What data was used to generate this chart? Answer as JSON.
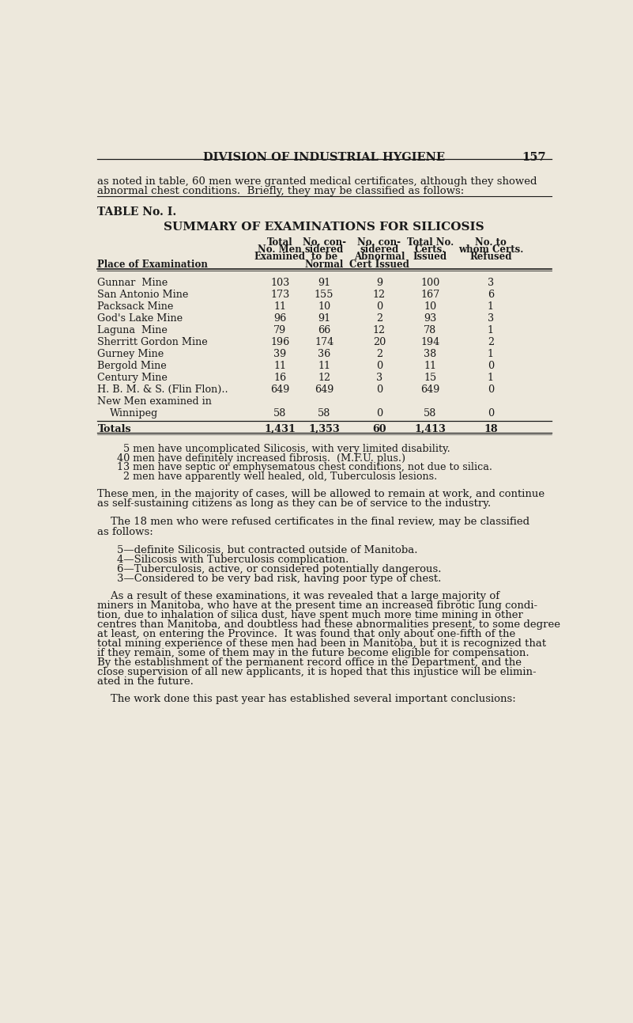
{
  "bg_color": "#ede8dc",
  "text_color": "#1a1a1a",
  "page_header": "DIVISION OF INDUSTRIAL HYGIENE",
  "page_number": "157",
  "intro_line1": "as noted in table, 60 men were granted medical certificates, although they showed",
  "intro_line2": "abnormal chest conditions.  Briefly, they may be classified as follows:",
  "table_label": "TABLE No. I.",
  "table_title": "SUMMARY OF EXAMINATIONS FOR SILICOSIS",
  "col_headers": [
    "Place of Examination",
    "Total\nNo. Men\nExamined",
    "No. con-\nsidered\nto be\nNormal",
    "No. con-\nsidered\nAbnormal\nCert Issued",
    "Total No.\nCerts.\nIssued",
    "No. to\nwhom Certs.\nRefused"
  ],
  "rows": [
    [
      "Gunnar  Mine",
      "103",
      "91",
      "9",
      "100",
      "3"
    ],
    [
      "San Antonio Mine",
      "173",
      "155",
      "12",
      "167",
      "6"
    ],
    [
      "Packsack Mine",
      "11",
      "10",
      "0",
      "10",
      "1"
    ],
    [
      "God's Lake Mine",
      "96",
      "91",
      "2",
      "93",
      "3"
    ],
    [
      "Laguna  Mine",
      "79",
      "66",
      "12",
      "78",
      "1"
    ],
    [
      "Sherritt Gordon Mine",
      "196",
      "174",
      "20",
      "194",
      "2"
    ],
    [
      "Gurney Mine",
      "39",
      "36",
      "2",
      "38",
      "1"
    ],
    [
      "Bergold Mine",
      "11",
      "11",
      "0",
      "11",
      "0"
    ],
    [
      "Century Mine",
      "16",
      "12",
      "3",
      "15",
      "1"
    ],
    [
      "H. B. M. & S. (Flin Flon)..",
      "649",
      "649",
      "0",
      "649",
      "0"
    ]
  ],
  "row_winnipeg": [
    "New Men examined in",
    "Winnipeg",
    "58",
    "58",
    "0",
    "58",
    "0"
  ],
  "totals_row": [
    "Totals",
    "1,431",
    "1,353",
    "60",
    "1,413",
    "18"
  ],
  "bullet_lines": [
    "  5 men have uncomplicated Silicosis, with very limited disability.",
    "40 men have definitely increased fibrosis.  (M.F.U. plus.)",
    "13 men have septic or emphysematous chest conditions, not due to silica.",
    "  2 men have apparently well healed, old, Tuberculosis lesions."
  ],
  "para1_line1": "These men, in the majority of cases, will be allowed to remain at work, and continue",
  "para1_line2": "as self-sustaining citizens as long as they can be of service to the industry.",
  "para2_line1": "    The 18 men who were refused certificates in the final review, may be classified",
  "para2_line2": "as follows:",
  "bullet2_lines": [
    "5—definite Silicosis, but contracted outside of Manitoba.",
    "4—Silicosis with Tuberculosis complication.",
    "6—Tuberculosis, active, or considered potentially dangerous.",
    "3—Considered to be very bad risk, having poor type of chest."
  ],
  "para3_lines": [
    "    As a result of these examinations, it was revealed that a large majority of",
    "miners in Manitoba, who have at the present time an increased fibrotic lung condi-",
    "tion, due to inhalation of silica dust, have spent much more time mining in other",
    "centres than Manitoba, and doubtless had these abnormalities present, to some degree",
    "at least, on entering the Province.  It was found that only about one-fifth of the",
    "total mining experience of these men had been in Manitoba, but it is recognized that",
    "if they remain, some of them may in the future become eligible for compensation.",
    "By the establishment of the permanent record office in the Department, and the",
    "close supervision of all new applicants, it is hoped that this injustice will be elimin-",
    "ated in the future."
  ],
  "para4_indent": "    The work done this past year has established several important conclusions:"
}
